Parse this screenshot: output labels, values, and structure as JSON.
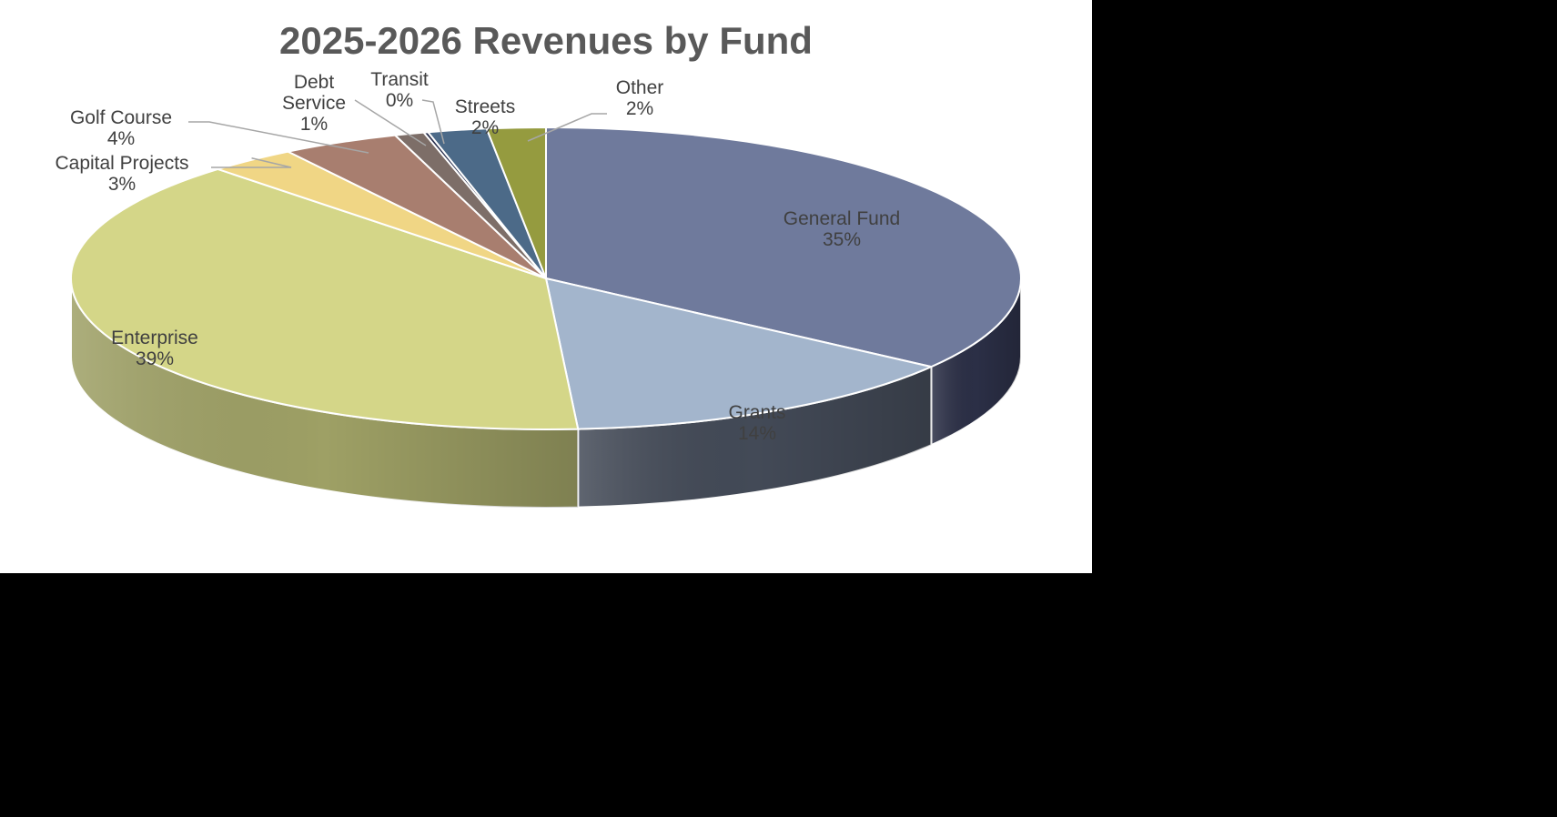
{
  "chart_data": {
    "type": "pie",
    "title": "2025-2026 Revenues by Fund",
    "unit": "%",
    "slices": [
      {
        "name": "General Fund",
        "value": 35,
        "label": "35%",
        "color": "#6f7a9c",
        "side_color": "#2b2f46"
      },
      {
        "name": "Grants",
        "value": 14,
        "label": "14%",
        "color": "#a3b5cc",
        "side_color": "#434a57"
      },
      {
        "name": "Enterprise",
        "value": 39,
        "label": "39%",
        "color": "#d4d688",
        "side_color": "#9ea065"
      },
      {
        "name": "Capital Projects",
        "value": 3,
        "label": "3%",
        "color": "#f0d685",
        "side_color": "#b49e55"
      },
      {
        "name": "Golf Course",
        "value": 4,
        "label": "4%",
        "color": "#a87e6f",
        "side_color": "#6e5248"
      },
      {
        "name": "Debt Service",
        "value": 1,
        "label": "1%",
        "color": "#7d6e68",
        "side_color": "#4f4541"
      },
      {
        "name": "Transit",
        "value": 0,
        "label": "0%",
        "color": "#2c3250",
        "side_color": "#1a1e32"
      },
      {
        "name": "Streets",
        "value": 2,
        "label": "2%",
        "color": "#4c6a88",
        "side_color": "#2f4358"
      },
      {
        "name": "Other",
        "value": 2,
        "label": "2%",
        "color": "#959b3f",
        "side_color": "#5f6328"
      }
    ],
    "data_labels": [
      {
        "lines": [
          "General Fund",
          "35%"
        ]
      },
      {
        "lines": [
          "Grants",
          "14%"
        ]
      },
      {
        "lines": [
          "Enterprise",
          "39%"
        ]
      },
      {
        "lines": [
          "Capital Projects",
          "3%"
        ]
      },
      {
        "lines": [
          "Golf Course",
          "4%"
        ]
      },
      {
        "lines": [
          "Debt",
          "Service",
          "1%"
        ]
      },
      {
        "lines": [
          "Transit",
          "0%"
        ]
      },
      {
        "lines": [
          "Streets",
          "2%"
        ]
      },
      {
        "lines": [
          "Other",
          "2%"
        ]
      }
    ],
    "legend": "none",
    "labels_style": "data labels with leader lines"
  }
}
